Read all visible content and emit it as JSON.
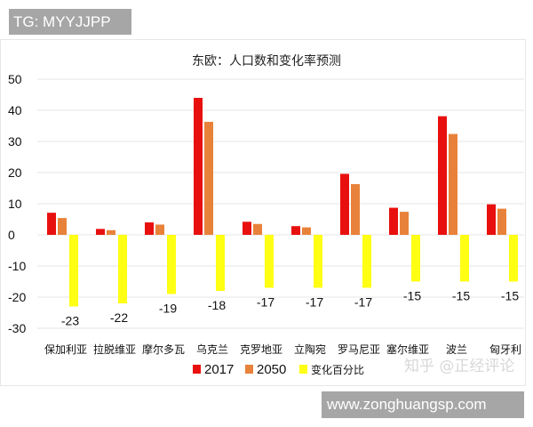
{
  "overlay": {
    "tg_label": "TG: MYYJJPP",
    "site_label": "www.zonghuangsp.com",
    "zhihu_watermark": "知乎 @正经评论"
  },
  "chart_data": {
    "type": "bar",
    "title": "东欧：人口数和变化率预测",
    "xlabel": "",
    "ylabel": "",
    "ylim": [
      -30,
      50
    ],
    "yticks": [
      50,
      40,
      30,
      20,
      10,
      0,
      -10,
      -20,
      -30
    ],
    "grid": true,
    "legend_position": "bottom",
    "categories": [
      "保加利亚",
      "拉脱维亚",
      "摩尔多瓦",
      "乌克兰",
      "克罗地亚",
      "立陶宛",
      "罗马尼亚",
      "塞尔维亚",
      "波兰",
      "匈牙利"
    ],
    "series": [
      {
        "name": "2017",
        "color": "#e8100f",
        "values": [
          7.1,
          1.9,
          4.0,
          44.0,
          4.2,
          2.8,
          19.6,
          8.7,
          38.1,
          9.8
        ]
      },
      {
        "name": "2050",
        "color": "#e8823a",
        "values": [
          5.4,
          1.5,
          3.3,
          36.3,
          3.5,
          2.4,
          16.3,
          7.4,
          32.4,
          8.4
        ]
      },
      {
        "name": "变化百分比",
        "color": "#ffff14",
        "values": [
          -23,
          -22,
          -19,
          -18,
          -17,
          -17,
          -17,
          -15,
          -15,
          -15
        ],
        "data_labels": [
          "-23",
          "-22",
          "-19",
          "-18",
          "-17",
          "-17",
          "-17",
          "-15",
          "-15",
          "-15"
        ]
      }
    ]
  }
}
